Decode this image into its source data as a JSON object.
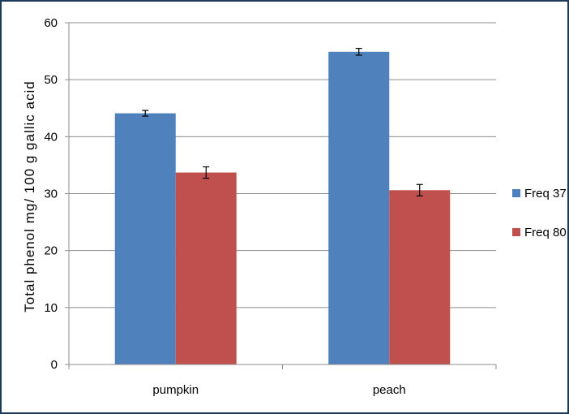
{
  "chart_data": {
    "type": "bar",
    "title": "",
    "xlabel": "",
    "ylabel": "Total phenol mg/ 100 g gallic acid",
    "categories": [
      "pumpkin",
      "peach"
    ],
    "series": [
      {
        "name": "Freq 37",
        "values": [
          44.1,
          54.9
        ],
        "errors": [
          0.5,
          0.6
        ],
        "color": "#4f81bd"
      },
      {
        "name": "Freq 80",
        "values": [
          33.7,
          30.6
        ],
        "errors": [
          1.0,
          1.0
        ],
        "color": "#c0504d"
      }
    ],
    "ylim": [
      0,
      60
    ],
    "yticks": [
      0,
      10,
      20,
      30,
      40,
      50,
      60
    ],
    "grid": true,
    "legend_position": "right"
  }
}
